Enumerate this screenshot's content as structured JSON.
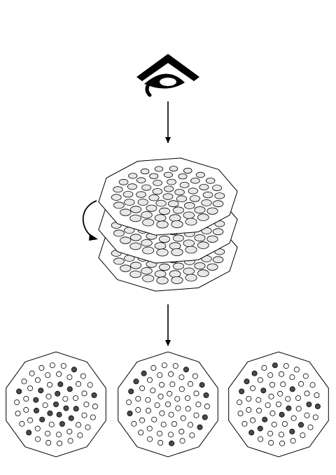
{
  "colors": {
    "stroke": "#000000",
    "background": "#ffffff",
    "plate_hole_fill": "#e8e8e8",
    "open_dot_fill": "#ffffff",
    "filled_dot_fill": "#4a4a4a"
  },
  "icons": {
    "viewer": "eye-icon",
    "rotation": "curved-arrow-icon"
  },
  "stack": {
    "plate_count": 3
  },
  "patterns": {
    "count": 3
  }
}
